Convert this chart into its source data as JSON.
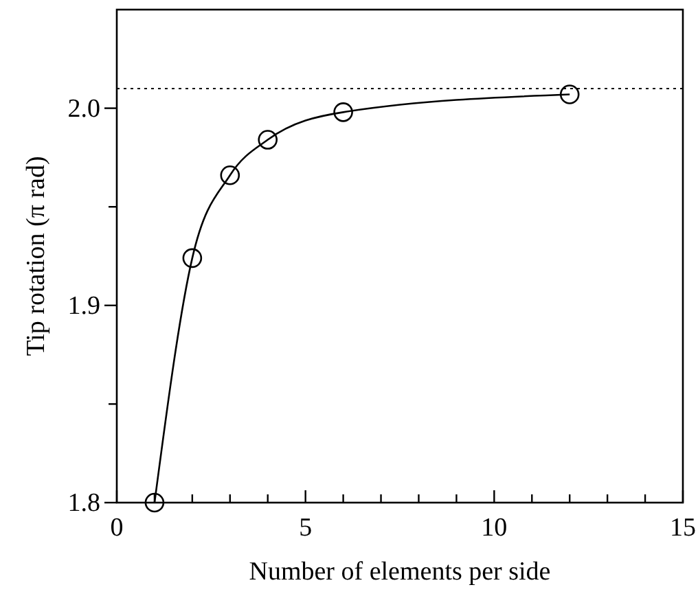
{
  "chart_data": {
    "type": "line",
    "xlabel": "Number of elements per side",
    "ylabel": "Tip rotation (π rad)",
    "x": [
      1,
      2,
      3,
      4,
      6,
      12
    ],
    "series": [
      {
        "color": "#000000",
        "values": [
          1.8,
          1.924,
          1.966,
          1.984,
          1.998,
          2.007
        ]
      }
    ],
    "xlim": [
      0,
      15
    ],
    "xticks": [
      0,
      {
        "value": 1,
        "label": null
      },
      {
        "value": 2,
        "label": null
      },
      {
        "value": 3,
        "label": null
      },
      {
        "value": 4,
        "label": null
      },
      5,
      {
        "value": 6,
        "label": null
      },
      {
        "value": 7,
        "label": null
      },
      {
        "value": 8,
        "label": null
      },
      {
        "value": 9,
        "label": null
      },
      10,
      {
        "value": 11,
        "label": null
      },
      {
        "value": 12,
        "label": null
      },
      {
        "value": 13,
        "label": null
      },
      {
        "value": 14,
        "label": null
      },
      15
    ],
    "ylim": [
      1.8,
      2.05
    ],
    "yticks": [
      {
        "value": 1.8,
        "label": "1.8"
      },
      {
        "value": 1.85,
        "label": null
      },
      {
        "value": 1.9,
        "label": "1.9"
      },
      {
        "value": 1.95,
        "label": null
      },
      {
        "value": 2.0,
        "label": "2.0"
      }
    ],
    "ref_lines": [
      {
        "axis": "y",
        "value": 2.01,
        "line_style": "dotted",
        "color": "#000000"
      }
    ],
    "marker": "circle",
    "line_style": "solid",
    "grid": false
  }
}
